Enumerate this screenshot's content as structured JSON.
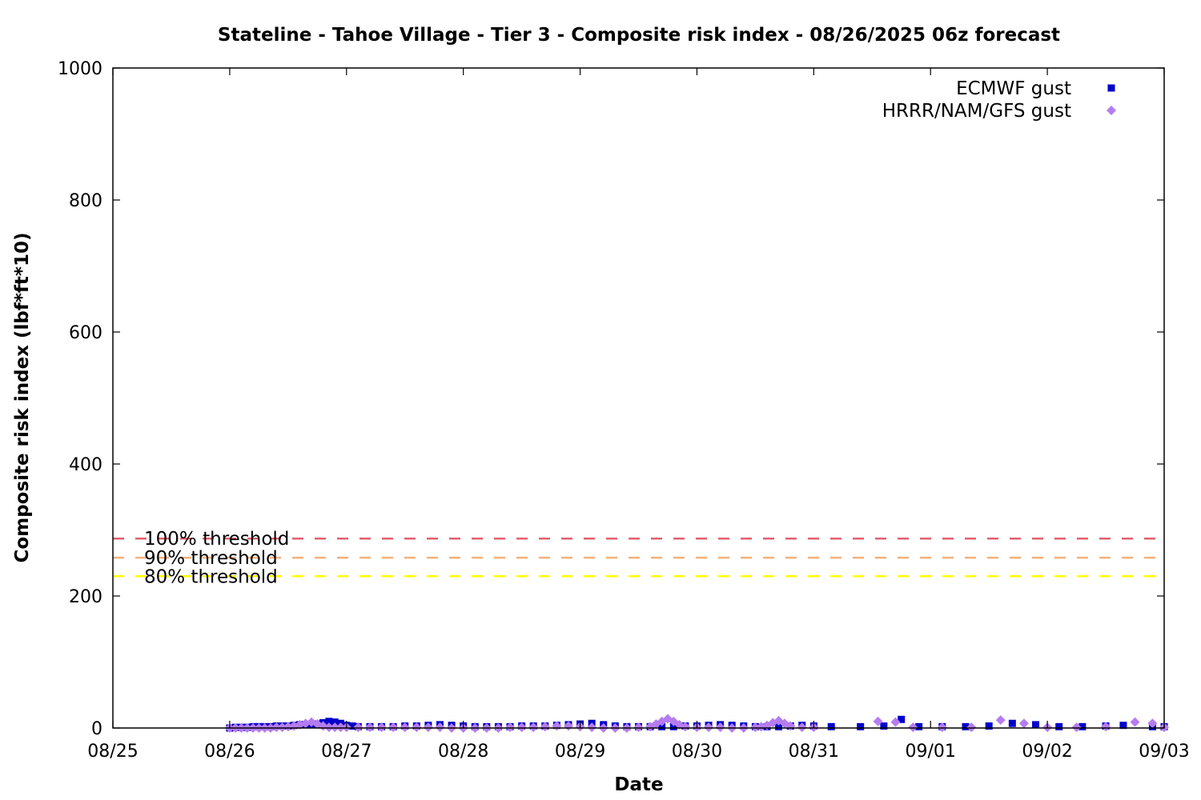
{
  "chart_data": {
    "type": "scatter",
    "title": "Stateline - Tahoe Village - Tier 3 - Composite risk index - 08/26/2025 06z forecast",
    "xlabel": "Date",
    "ylabel": "Composite risk index (lbf*ft*10)",
    "x_unit": "days",
    "x_start_label": "08/25",
    "xlim_days": [
      0,
      9
    ],
    "ylim": [
      0,
      1000
    ],
    "x_tick_labels": [
      "08/25",
      "08/26",
      "08/27",
      "08/28",
      "08/29",
      "08/30",
      "08/31",
      "09/01",
      "09/02",
      "09/03"
    ],
    "y_ticks": [
      0,
      200,
      400,
      600,
      800,
      1000
    ],
    "legend_position": "top-right",
    "grid": false,
    "thresholds": [
      {
        "label": "100% threshold",
        "value": 287,
        "color": "#e06070"
      },
      {
        "label": "90% threshold",
        "value": 258,
        "color": "#f4b07c"
      },
      {
        "label": "80% threshold",
        "value": 230,
        "color": "#ffff00"
      }
    ],
    "series": [
      {
        "name": "ECMWF gust",
        "marker": "square",
        "color": "#0000cc",
        "points": [
          [
            1.0,
            0
          ],
          [
            1.05,
            1
          ],
          [
            1.1,
            1
          ],
          [
            1.15,
            1
          ],
          [
            1.2,
            2
          ],
          [
            1.25,
            2
          ],
          [
            1.3,
            2
          ],
          [
            1.35,
            2
          ],
          [
            1.4,
            3
          ],
          [
            1.45,
            3
          ],
          [
            1.5,
            3
          ],
          [
            1.55,
            4
          ],
          [
            1.6,
            5
          ],
          [
            1.65,
            5
          ],
          [
            1.7,
            5
          ],
          [
            1.75,
            6
          ],
          [
            1.8,
            8
          ],
          [
            1.85,
            10
          ],
          [
            1.9,
            9
          ],
          [
            1.95,
            7
          ],
          [
            2.0,
            4
          ],
          [
            2.05,
            3
          ],
          [
            2.1,
            2
          ],
          [
            2.2,
            2
          ],
          [
            2.3,
            2
          ],
          [
            2.4,
            2
          ],
          [
            2.5,
            3
          ],
          [
            2.6,
            3
          ],
          [
            2.7,
            4
          ],
          [
            2.8,
            5
          ],
          [
            2.9,
            4
          ],
          [
            3.0,
            3
          ],
          [
            3.1,
            2
          ],
          [
            3.2,
            2
          ],
          [
            3.3,
            2
          ],
          [
            3.4,
            2
          ],
          [
            3.5,
            3
          ],
          [
            3.6,
            3
          ],
          [
            3.7,
            3
          ],
          [
            3.8,
            4
          ],
          [
            3.9,
            5
          ],
          [
            4.0,
            6
          ],
          [
            4.1,
            7
          ],
          [
            4.2,
            5
          ],
          [
            4.3,
            3
          ],
          [
            4.4,
            2
          ],
          [
            4.5,
            2
          ],
          [
            4.6,
            2
          ],
          [
            4.7,
            2
          ],
          [
            4.8,
            2
          ],
          [
            4.9,
            3
          ],
          [
            5.0,
            3
          ],
          [
            5.1,
            4
          ],
          [
            5.2,
            5
          ],
          [
            5.3,
            4
          ],
          [
            5.4,
            3
          ],
          [
            5.5,
            2
          ],
          [
            5.6,
            2
          ],
          [
            5.7,
            2
          ],
          [
            5.8,
            3
          ],
          [
            5.9,
            4
          ],
          [
            6.0,
            3
          ],
          [
            6.15,
            2
          ],
          [
            6.4,
            2
          ],
          [
            6.6,
            3
          ],
          [
            6.75,
            13
          ],
          [
            6.9,
            2
          ],
          [
            7.1,
            2
          ],
          [
            7.3,
            2
          ],
          [
            7.5,
            3
          ],
          [
            7.7,
            7
          ],
          [
            7.9,
            5
          ],
          [
            8.1,
            2
          ],
          [
            8.3,
            2
          ],
          [
            8.5,
            3
          ],
          [
            8.65,
            4
          ],
          [
            8.9,
            2
          ],
          [
            9.0,
            2
          ]
        ]
      },
      {
        "name": "HRRR/NAM/GFS gust",
        "marker": "diamond",
        "color": "#b57cf0",
        "points": [
          [
            1.0,
            0
          ],
          [
            1.05,
            0
          ],
          [
            1.1,
            0
          ],
          [
            1.15,
            0
          ],
          [
            1.2,
            0
          ],
          [
            1.25,
            0
          ],
          [
            1.3,
            0
          ],
          [
            1.35,
            0
          ],
          [
            1.4,
            1
          ],
          [
            1.45,
            1
          ],
          [
            1.5,
            2
          ],
          [
            1.55,
            3
          ],
          [
            1.6,
            5
          ],
          [
            1.65,
            7
          ],
          [
            1.7,
            9
          ],
          [
            1.75,
            6
          ],
          [
            1.8,
            3
          ],
          [
            1.85,
            1
          ],
          [
            1.9,
            1
          ],
          [
            1.95,
            1
          ],
          [
            2.0,
            1
          ],
          [
            2.1,
            1
          ],
          [
            2.2,
            1
          ],
          [
            2.3,
            1
          ],
          [
            2.4,
            1
          ],
          [
            2.5,
            1
          ],
          [
            2.6,
            1
          ],
          [
            2.7,
            1
          ],
          [
            2.8,
            1
          ],
          [
            2.9,
            0
          ],
          [
            3.0,
            0
          ],
          [
            3.1,
            0
          ],
          [
            3.2,
            0
          ],
          [
            3.3,
            0
          ],
          [
            3.4,
            1
          ],
          [
            3.5,
            1
          ],
          [
            3.6,
            1
          ],
          [
            3.7,
            2
          ],
          [
            3.8,
            3
          ],
          [
            3.9,
            3
          ],
          [
            4.0,
            2
          ],
          [
            4.1,
            1
          ],
          [
            4.2,
            0
          ],
          [
            4.3,
            0
          ],
          [
            4.4,
            0
          ],
          [
            4.5,
            1
          ],
          [
            4.6,
            2
          ],
          [
            4.65,
            6
          ],
          [
            4.7,
            10
          ],
          [
            4.75,
            14
          ],
          [
            4.8,
            10
          ],
          [
            4.85,
            5
          ],
          [
            4.9,
            2
          ],
          [
            5.0,
            1
          ],
          [
            5.1,
            1
          ],
          [
            5.2,
            1
          ],
          [
            5.3,
            0
          ],
          [
            5.4,
            0
          ],
          [
            5.5,
            1
          ],
          [
            5.55,
            2
          ],
          [
            5.6,
            4
          ],
          [
            5.65,
            8
          ],
          [
            5.7,
            11
          ],
          [
            5.75,
            7
          ],
          [
            5.8,
            3
          ],
          [
            5.9,
            1
          ],
          [
            6.0,
            1
          ],
          [
            6.55,
            10
          ],
          [
            6.7,
            9
          ],
          [
            6.85,
            1
          ],
          [
            7.1,
            1
          ],
          [
            7.35,
            1
          ],
          [
            7.6,
            12
          ],
          [
            7.8,
            7
          ],
          [
            8.0,
            1
          ],
          [
            8.25,
            1
          ],
          [
            8.5,
            2
          ],
          [
            8.75,
            9
          ],
          [
            8.9,
            7
          ],
          [
            9.0,
            1
          ]
        ]
      }
    ]
  }
}
